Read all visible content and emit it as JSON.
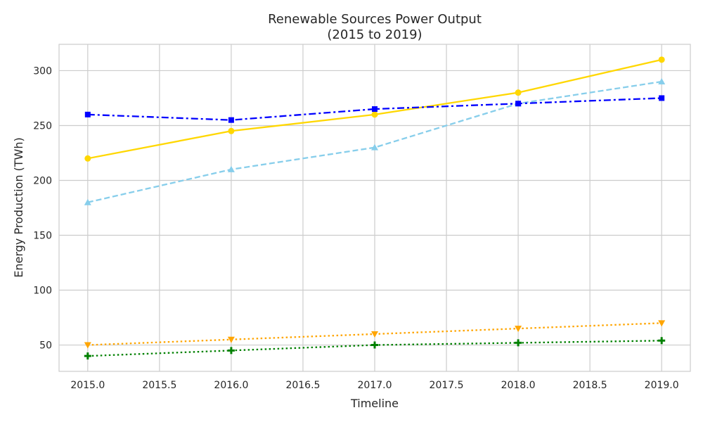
{
  "chart_data": {
    "type": "line",
    "title_lines": [
      "Renewable Sources Power Output",
      "(2015 to 2019)"
    ],
    "xlabel": "Timeline",
    "ylabel": "Energy Production (TWh)",
    "x": [
      2015,
      2016,
      2017,
      2018,
      2019
    ],
    "xlim": [
      2014.8,
      2019.2
    ],
    "ylim": [
      26,
      324
    ],
    "x_ticks": [
      2015.0,
      2015.5,
      2016.0,
      2016.5,
      2017.0,
      2017.5,
      2018.0,
      2018.5,
      2019.0
    ],
    "x_tick_labels": [
      "2015.0",
      "2015.5",
      "2016.0",
      "2016.5",
      "2017.0",
      "2017.5",
      "2018.0",
      "2018.5",
      "2019.0"
    ],
    "y_ticks": [
      50,
      100,
      150,
      200,
      250,
      300
    ],
    "y_tick_labels": [
      "50",
      "100",
      "150",
      "200",
      "250",
      "300"
    ],
    "grid": true,
    "legend": "none",
    "series": [
      {
        "values": [
          220,
          245,
          260,
          280,
          310
        ],
        "color": "#FFD700",
        "dash": "solid",
        "marker": "circle"
      },
      {
        "values": [
          180,
          210,
          230,
          270,
          290
        ],
        "color": "#87CEEB",
        "dash": "dashed",
        "marker": "triangle-up"
      },
      {
        "values": [
          260,
          255,
          265,
          270,
          275
        ],
        "color": "#0000FF",
        "dash": "dashdot",
        "marker": "square"
      },
      {
        "values": [
          50,
          55,
          60,
          65,
          70
        ],
        "color": "#FFA500",
        "dash": "dotted",
        "marker": "triangle-down"
      },
      {
        "values": [
          40,
          45,
          50,
          52,
          54
        ],
        "color": "#008000",
        "dash": "dotted",
        "marker": "plus"
      }
    ]
  }
}
